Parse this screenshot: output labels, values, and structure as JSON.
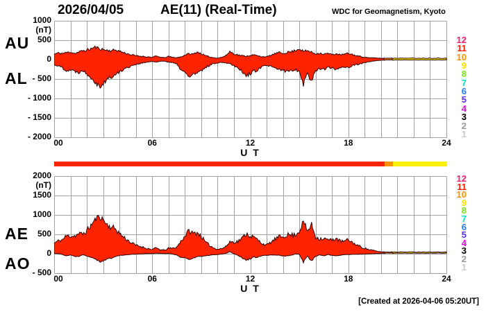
{
  "header": {
    "date": "2026/04/05",
    "title": "AE(11) (Real-Time)",
    "source": "WDC for Geomagnetism, Kyoto"
  },
  "footer": {
    "created": "[Created at 2026-04-06 05:20UT]"
  },
  "colors": {
    "fill_red": "#FF2400",
    "fill_orange": "#FF9000",
    "fill_yellow": "#FFF000",
    "outline": "#2A0000",
    "grid": "#A0A0A0",
    "background": "#FFFFFF",
    "text": "#000000"
  },
  "station_scale": [
    {
      "n": "12",
      "color": "#F02070"
    },
    {
      "n": "11",
      "color": "#FF2000"
    },
    {
      "n": "10",
      "color": "#FF9000"
    },
    {
      "n": "9",
      "color": "#FFE000"
    },
    {
      "n": "8",
      "color": "#7FE020"
    },
    {
      "n": "7",
      "color": "#00E0C8"
    },
    {
      "n": "6",
      "color": "#2878FF"
    },
    {
      "n": "5",
      "color": "#5830E8"
    },
    {
      "n": "4",
      "color": "#F000F0"
    },
    {
      "n": "3",
      "color": "#000000"
    },
    {
      "n": "2",
      "color": "#989898"
    },
    {
      "n": "1",
      "color": "#C8C8C8"
    }
  ],
  "panels": [
    {
      "name": "AU/AL",
      "left_labels": [
        "AU",
        "AL"
      ],
      "unit": "(nT)",
      "ylim": [
        -2000,
        1000
      ],
      "ytick_step": 500,
      "yticks": [
        {
          "v": 1000,
          "label": "1000"
        },
        {
          "v": 500,
          "label": "500"
        },
        {
          "v": 0,
          "label": "0"
        },
        {
          "v": -500,
          "label": "- 500"
        },
        {
          "v": -1000,
          "label": "- 1000"
        },
        {
          "v": -1500,
          "label": "- 1500"
        },
        {
          "v": -2000,
          "label": "- 2000"
        }
      ],
      "xticks": [
        {
          "v": 0,
          "label": "00"
        },
        {
          "v": 6,
          "label": "06"
        },
        {
          "v": 12,
          "label": "12"
        },
        {
          "v": 18,
          "label": "18"
        },
        {
          "v": 24,
          "label": "24"
        }
      ],
      "xlabel": "U T",
      "upper_series": "AU",
      "lower_series": "AL"
    },
    {
      "name": "AE/AO",
      "left_labels": [
        "AE",
        "AO"
      ],
      "unit": "(nT)",
      "ylim": [
        -500,
        2000
      ],
      "ytick_step": 500,
      "yticks": [
        {
          "v": 2000,
          "label": "2000"
        },
        {
          "v": 1500,
          "label": "1500"
        },
        {
          "v": 1000,
          "label": "1000"
        },
        {
          "v": 500,
          "label": "500"
        },
        {
          "v": 0,
          "label": "0"
        },
        {
          "v": -500,
          "label": "- 500"
        }
      ],
      "xticks": [
        {
          "v": 0,
          "label": "00"
        },
        {
          "v": 6,
          "label": "06"
        },
        {
          "v": 12,
          "label": "12"
        },
        {
          "v": 18,
          "label": "18"
        },
        {
          "v": 24,
          "label": "24"
        }
      ],
      "xlabel": "U T",
      "upper_series": "AE",
      "lower_series": "AO"
    }
  ],
  "chart_data": {
    "type": "area",
    "title": "AE(11) (Real-Time)",
    "date": "2026/04/05",
    "xlabel": "U T",
    "ylabel": "nT",
    "x_start_hour": 0,
    "x_end_hour": 24,
    "x_step_hours": 0.25,
    "grid": true,
    "panel_ylims": {
      "AU_AL": [
        -2000,
        1000
      ],
      "AE_AO": [
        -500,
        2000
      ]
    },
    "series": [
      {
        "name": "AU",
        "values": [
          140,
          170,
          160,
          180,
          200,
          160,
          190,
          230,
          240,
          280,
          320,
          290,
          260,
          240,
          230,
          250,
          220,
          180,
          150,
          120,
          100,
          90,
          80,
          70,
          60,
          90,
          60,
          50,
          80,
          60,
          50,
          70,
          120,
          150,
          140,
          200,
          150,
          100,
          70,
          50,
          40,
          60,
          100,
          210,
          150,
          120,
          100,
          90,
          110,
          120,
          90,
          80,
          70,
          110,
          150,
          180,
          160,
          190,
          200,
          240,
          280,
          210,
          230,
          190,
          150,
          170,
          140,
          160,
          130,
          150,
          120,
          140,
          160,
          130,
          100,
          80,
          60,
          50,
          45,
          40,
          35,
          35,
          40,
          35,
          40,
          35,
          40,
          35,
          40,
          35,
          40,
          35,
          40,
          35,
          40,
          35,
          40
        ]
      },
      {
        "name": "AL",
        "values": [
          -130,
          -160,
          -200,
          -280,
          -260,
          -300,
          -320,
          -280,
          -350,
          -450,
          -550,
          -680,
          -620,
          -500,
          -450,
          -400,
          -300,
          -250,
          -200,
          -150,
          -120,
          -100,
          -80,
          -60,
          -50,
          -60,
          -40,
          -40,
          -60,
          -80,
          -120,
          -250,
          -340,
          -440,
          -380,
          -350,
          -300,
          -200,
          -150,
          -100,
          -80,
          -70,
          -80,
          -100,
          -150,
          -200,
          -300,
          -430,
          -350,
          -300,
          -250,
          -180,
          -150,
          -180,
          -220,
          -250,
          -280,
          -300,
          -280,
          -250,
          -300,
          -620,
          -350,
          -560,
          -280,
          -220,
          -250,
          -200,
          -220,
          -250,
          -200,
          -180,
          -200,
          -160,
          -130,
          -100,
          -80,
          -60,
          -40,
          -25,
          -15,
          -10,
          -5,
          -10,
          -5,
          -10,
          -5,
          -10,
          -5,
          -10,
          -5,
          -10,
          -5,
          -10,
          -5,
          -10,
          -5
        ]
      },
      {
        "name": "AE",
        "values": [
          270,
          330,
          360,
          460,
          460,
          460,
          510,
          510,
          590,
          730,
          870,
          970,
          880,
          740,
          680,
          650,
          520,
          430,
          350,
          270,
          220,
          190,
          160,
          130,
          110,
          150,
          100,
          90,
          140,
          140,
          170,
          320,
          460,
          590,
          520,
          550,
          450,
          300,
          220,
          150,
          120,
          130,
          180,
          310,
          300,
          320,
          400,
          520,
          460,
          420,
          340,
          260,
          220,
          290,
          370,
          430,
          440,
          490,
          480,
          490,
          580,
          830,
          580,
          750,
          430,
          390,
          390,
          360,
          350,
          400,
          320,
          320,
          360,
          290,
          230,
          180,
          140,
          110,
          85,
          65,
          50,
          45,
          45,
          45,
          45,
          45,
          45,
          45,
          45,
          45,
          45,
          45,
          45,
          45,
          45,
          45,
          45
        ]
      },
      {
        "name": "AO",
        "values": [
          5,
          5,
          -20,
          -50,
          -30,
          -70,
          -65,
          -25,
          -55,
          -85,
          -115,
          -195,
          -180,
          -130,
          -110,
          -75,
          -40,
          -35,
          -25,
          -15,
          -10,
          -5,
          0,
          5,
          5,
          15,
          10,
          5,
          10,
          -10,
          -35,
          -90,
          -110,
          -145,
          -120,
          -75,
          -75,
          -50,
          -40,
          -25,
          -20,
          -5,
          10,
          55,
          0,
          -40,
          -100,
          -170,
          -120,
          -90,
          -80,
          -50,
          -40,
          -35,
          -35,
          -35,
          -60,
          -55,
          -40,
          -5,
          -10,
          -205,
          -60,
          -185,
          -65,
          -25,
          -55,
          -20,
          -45,
          -50,
          -40,
          -20,
          -20,
          -15,
          -15,
          -10,
          -10,
          -5,
          3,
          8,
          10,
          13,
          18,
          13,
          18,
          13,
          18,
          13,
          18,
          13,
          18,
          13,
          18,
          13,
          18,
          13,
          18
        ]
      }
    ],
    "data_quality_segments": [
      {
        "from_hour": 0,
        "to_hour": 20.2,
        "color": "#FF2400"
      },
      {
        "from_hour": 20.2,
        "to_hour": 20.7,
        "color": "#FF9000"
      },
      {
        "from_hour": 20.7,
        "to_hour": 24,
        "color": "#FFF000"
      }
    ]
  }
}
